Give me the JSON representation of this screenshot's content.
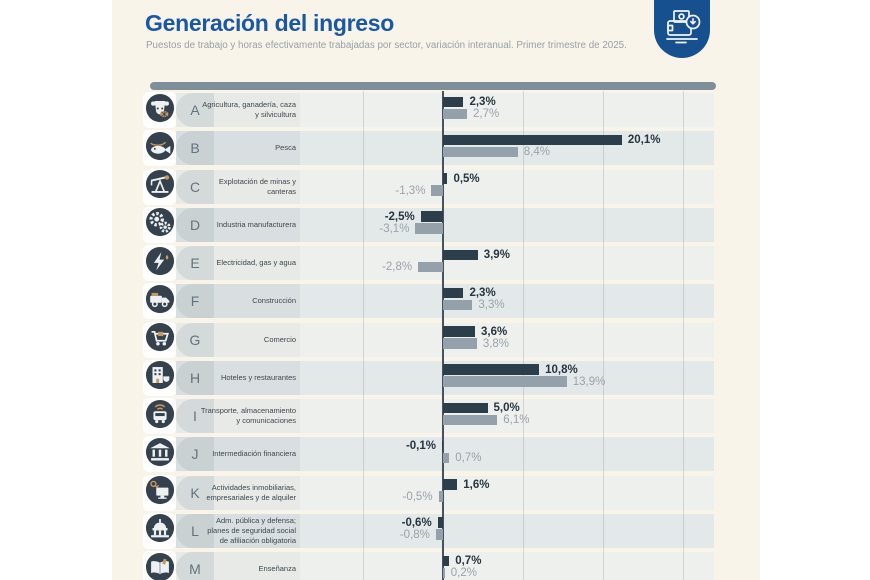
{
  "header": {
    "title": "Generación del ingreso",
    "subtitle": "Puestos de trabajo y horas efectivamente trabajadas por sector, variación interanual. Primer trimestre de 2025.",
    "logo_icon": "wallet-income-icon"
  },
  "colors": {
    "title": "#1b58a4",
    "logo_bg": "#17508e",
    "top_strip": "#7e8f9a",
    "dark_bar": "#2d3e4b",
    "gray_bar": "#95a1aa",
    "band_light": "#e7eae6",
    "band_dark": "#d9dfe0",
    "tab_light": "#d4dad9",
    "tab_dark": "#c9d1d3",
    "poster_bg": "#f8f4e9"
  },
  "chart_data": {
    "type": "bar",
    "orientation": "horizontal",
    "unit": "%",
    "title": "Generación del ingreso",
    "subtitle": "Puestos de trabajo y horas efectivamente trabajadas por sector, variación interanual. Primer trimestre de 2025.",
    "series": [
      {
        "name": "Puestos de trabajo",
        "color": "#2d3e4b"
      },
      {
        "name": "Horas efectivamente trabajadas",
        "color": "#95a1aa"
      }
    ],
    "axis": {
      "zero_line": true,
      "gridlines": true,
      "tick_labels_visible": false
    },
    "rows": [
      {
        "letter": "A",
        "label": "Agricultura, ganadería, caza y silvicultura",
        "icon": "cow-icon",
        "values": [
          2.3,
          2.7
        ],
        "display": [
          "2,3%",
          "2,7%"
        ]
      },
      {
        "letter": "B",
        "label": "Pesca",
        "icon": "fish-icon",
        "values": [
          20.1,
          8.4
        ],
        "display": [
          "20,1%",
          "8,4%"
        ]
      },
      {
        "letter": "C",
        "label": "Explotación de minas y canteras",
        "icon": "pumpjack-icon",
        "values": [
          0.5,
          -1.3
        ],
        "display": [
          "0,5%",
          "-1,3%"
        ]
      },
      {
        "letter": "D",
        "label": "Industria manufacturera",
        "icon": "gears-icon",
        "values": [
          -2.5,
          -3.1
        ],
        "display": [
          "-2,5%",
          "-3,1%"
        ]
      },
      {
        "letter": "E",
        "label": "Electricidad, gas y agua",
        "icon": "electricity-icon",
        "values": [
          3.9,
          -2.8
        ],
        "display": [
          "3,9%",
          "-2,8%"
        ]
      },
      {
        "letter": "F",
        "label": "Construcción",
        "icon": "truck-icon",
        "values": [
          2.3,
          3.3
        ],
        "display": [
          "2,3%",
          "3,3%"
        ]
      },
      {
        "letter": "G",
        "label": "Comercio",
        "icon": "cart-icon",
        "values": [
          3.6,
          3.8
        ],
        "display": [
          "3,6%",
          "3,8%"
        ]
      },
      {
        "letter": "H",
        "label": "Hoteles y restaurantes",
        "icon": "hotel-icon",
        "values": [
          10.8,
          13.9
        ],
        "display": [
          "10,8%",
          "13,9%"
        ]
      },
      {
        "letter": "I",
        "label": "Transporte, almacenamiento y comunicaciones",
        "icon": "transport-icon",
        "values": [
          5.0,
          6.1
        ],
        "display": [
          "5,0%",
          "6,1%"
        ]
      },
      {
        "letter": "J",
        "label": "Intermediación financiera",
        "icon": "bank-icon",
        "values": [
          -0.1,
          0.7
        ],
        "display": [
          "-0,1%",
          "0,7%"
        ]
      },
      {
        "letter": "K",
        "label": "Actividades inmobiliarias, empresariales y de alquiler",
        "icon": "key-monitor-icon",
        "values": [
          1.6,
          -0.5
        ],
        "display": [
          "1,6%",
          "-0,5%"
        ]
      },
      {
        "letter": "L",
        "label": "Adm. pública y defensa; planes de seguridad social de afiliación obligatoria",
        "icon": "capitol-icon",
        "values": [
          -0.6,
          -0.8
        ],
        "display": [
          "-0,6%",
          "-0,8%"
        ]
      },
      {
        "letter": "M",
        "label": "Enseñanza",
        "icon": "books-icon",
        "values": [
          0.7,
          0.2
        ],
        "display": [
          "0,7%",
          "0,2%"
        ]
      }
    ]
  }
}
